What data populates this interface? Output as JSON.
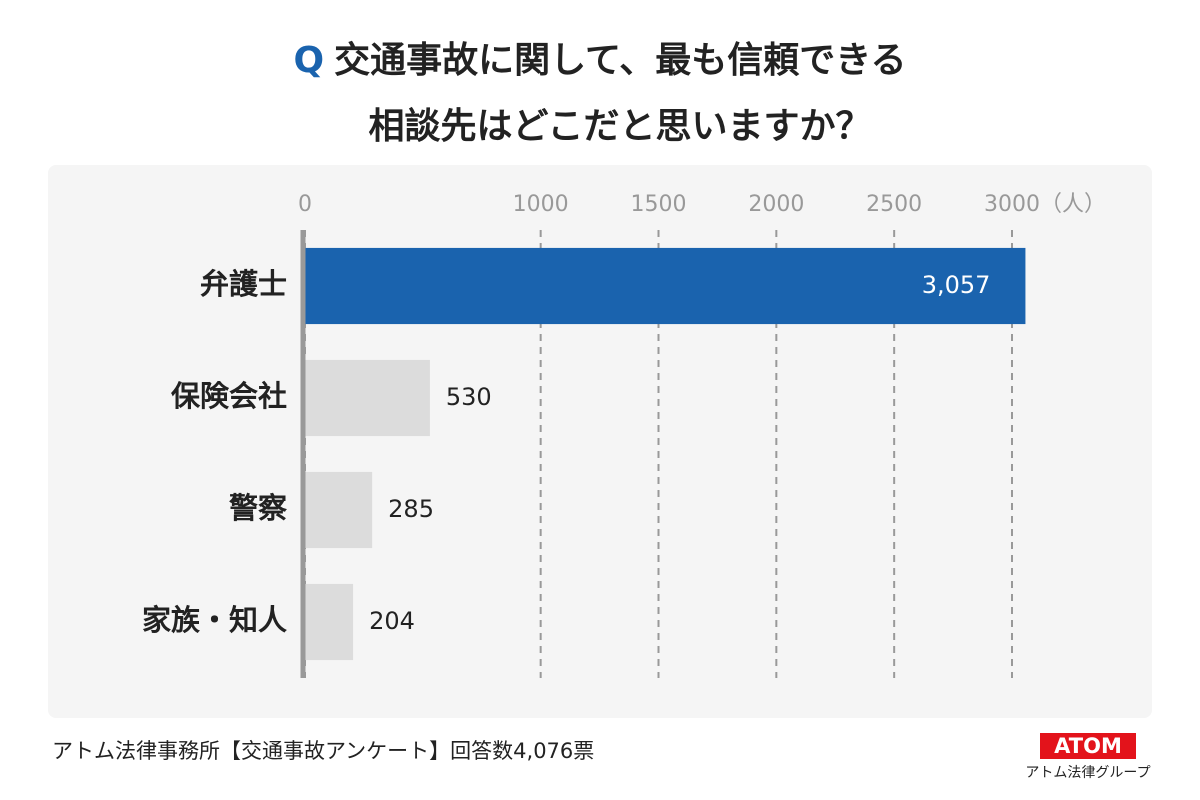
{
  "chart_data": {
    "type": "bar",
    "orientation": "horizontal",
    "title_prefix": "Q",
    "title_lines": [
      "交通事故に関して、最も信頼できる",
      "相談先はどこだと思いますか？"
    ],
    "x_unit": "（人）",
    "categories": [
      "弁護士",
      "保険会社",
      "警察",
      "家族・知人"
    ],
    "values": [
      3057,
      530,
      285,
      204
    ],
    "value_labels": [
      "3,057",
      "530",
      "285",
      "204"
    ],
    "colors": [
      "#1a63ae",
      "#dcdcdc",
      "#dcdcdc",
      "#dcdcdc"
    ],
    "xlim": [
      0,
      3000
    ],
    "xticks": [
      0,
      1000,
      1500,
      2000,
      2500,
      3000
    ],
    "grid": true,
    "footer": "アトム法律事務所【交通事故アンケート】回答数4,076票",
    "logo": "ATOM",
    "logo_subtitle": "アトム法律グループ"
  }
}
